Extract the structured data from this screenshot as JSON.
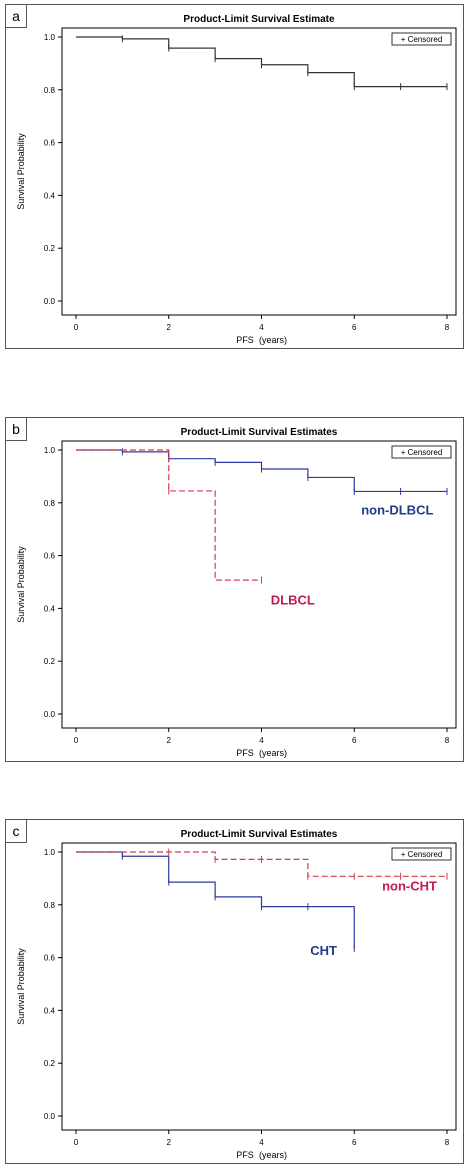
{
  "colors": {
    "frame": "#000000",
    "blue": "#2b3a9c",
    "red": "#d63a4e",
    "label_blue": "#1f3a8a",
    "label_red": "#c2185b"
  },
  "chart_data": [
    {
      "type": "line",
      "panel_label": "a",
      "title": "Product-Limit Survival Estimate",
      "xlabel": "PFS",
      "xlabel_unit": "(years)",
      "ylabel": "Survival Probability",
      "xlim": [
        0,
        8
      ],
      "ylim": [
        0,
        1.0
      ],
      "xticks": [
        "0",
        "2",
        "4",
        "6",
        "8"
      ],
      "yticks": [
        "0.0",
        "0.2",
        "0.4",
        "0.6",
        "0.8",
        "1.0"
      ],
      "legend": "+ Censored",
      "legend_position": "top-right",
      "series": [
        {
          "color": "#333333",
          "dash": false,
          "steps": [
            [
              0,
              1.0
            ],
            [
              1,
              0.993
            ],
            [
              2,
              0.958
            ],
            [
              3,
              0.918
            ],
            [
              4,
              0.895
            ],
            [
              5,
              0.865
            ],
            [
              6,
              0.812
            ],
            [
              8,
              0.812
            ]
          ],
          "censored": [
            [
              1,
              0.993
            ],
            [
              2,
              0.958
            ],
            [
              3,
              0.918
            ],
            [
              4,
              0.895
            ],
            [
              5,
              0.865
            ],
            [
              6,
              0.812
            ],
            [
              7,
              0.812
            ],
            [
              8,
              0.812
            ]
          ]
        }
      ]
    },
    {
      "type": "line",
      "panel_label": "b",
      "title": "Product-Limit Survival Estimates",
      "xlabel": "PFS",
      "xlabel_unit": "(years)",
      "ylabel": "Survival Probability",
      "xlim": [
        0,
        8
      ],
      "ylim": [
        0,
        1.0
      ],
      "xticks": [
        "0",
        "2",
        "4",
        "6",
        "8"
      ],
      "yticks": [
        "0.0",
        "0.2",
        "0.4",
        "0.6",
        "0.8",
        "1.0"
      ],
      "legend": "+ Censored",
      "legend_position": "top-right",
      "series": [
        {
          "name": "non-DLBCL",
          "color": "#2b3a9c",
          "dash": false,
          "label_at": [
            6.15,
            0.755
          ],
          "label_color": "#1f3a8a",
          "steps": [
            [
              0,
              1.0
            ],
            [
              1,
              0.993
            ],
            [
              2,
              0.967
            ],
            [
              3,
              0.953
            ],
            [
              4,
              0.928
            ],
            [
              5,
              0.896
            ],
            [
              6,
              0.843
            ],
            [
              8,
              0.843
            ]
          ],
          "censored": [
            [
              1,
              0.993
            ],
            [
              2,
              0.967
            ],
            [
              3,
              0.953
            ],
            [
              4,
              0.928
            ],
            [
              5,
              0.896
            ],
            [
              6,
              0.843
            ],
            [
              7,
              0.843
            ],
            [
              8,
              0.843
            ]
          ]
        },
        {
          "name": "DLBCL",
          "color": "#d63a4e",
          "dash": true,
          "label_at": [
            4.2,
            0.415
          ],
          "label_color": "#c2185b",
          "steps": [
            [
              0,
              1.0
            ],
            [
              2,
              0.845
            ],
            [
              3,
              0.507
            ],
            [
              4,
              0.507
            ]
          ],
          "censored": [
            [
              2,
              0.845
            ],
            [
              4,
              0.507
            ]
          ]
        }
      ]
    },
    {
      "type": "line",
      "panel_label": "c",
      "title": "Product-Limit Survival Estimates",
      "xlabel": "PFS",
      "xlabel_unit": "(years)",
      "ylabel": "Survival Probability",
      "xlim": [
        0,
        8
      ],
      "ylim": [
        0,
        1.0
      ],
      "xticks": [
        "0",
        "2",
        "4",
        "6",
        "8"
      ],
      "yticks": [
        "0.0",
        "0.2",
        "0.4",
        "0.6",
        "0.8",
        "1.0"
      ],
      "legend": "+ Censored",
      "legend_position": "top-right",
      "series": [
        {
          "name": "CHT",
          "color": "#2b3a9c",
          "dash": false,
          "label_at": [
            5.05,
            0.61
          ],
          "label_color": "#1f3a8a",
          "steps": [
            [
              0,
              1.0
            ],
            [
              1,
              0.984
            ],
            [
              2,
              0.886
            ],
            [
              3,
              0.83
            ],
            [
              4,
              0.793
            ],
            [
              6,
              0.635
            ]
          ],
          "censored": [
            [
              1,
              0.984
            ],
            [
              2,
              0.886
            ],
            [
              3,
              0.83
            ],
            [
              4,
              0.793
            ],
            [
              5,
              0.793
            ],
            [
              6,
              0.635
            ]
          ]
        },
        {
          "name": "non-CHT",
          "color": "#d63a4e",
          "dash": true,
          "label_at": [
            6.6,
            0.855
          ],
          "label_color": "#c2185b",
          "steps": [
            [
              0,
              1.0
            ],
            [
              3,
              0.972
            ],
            [
              5,
              0.908
            ],
            [
              8,
              0.908
            ]
          ],
          "censored": [
            [
              2,
              1.0
            ],
            [
              3,
              0.972
            ],
            [
              4,
              0.972
            ],
            [
              5,
              0.908
            ],
            [
              6,
              0.908
            ],
            [
              7,
              0.908
            ],
            [
              8,
              0.908
            ]
          ]
        }
      ]
    }
  ]
}
